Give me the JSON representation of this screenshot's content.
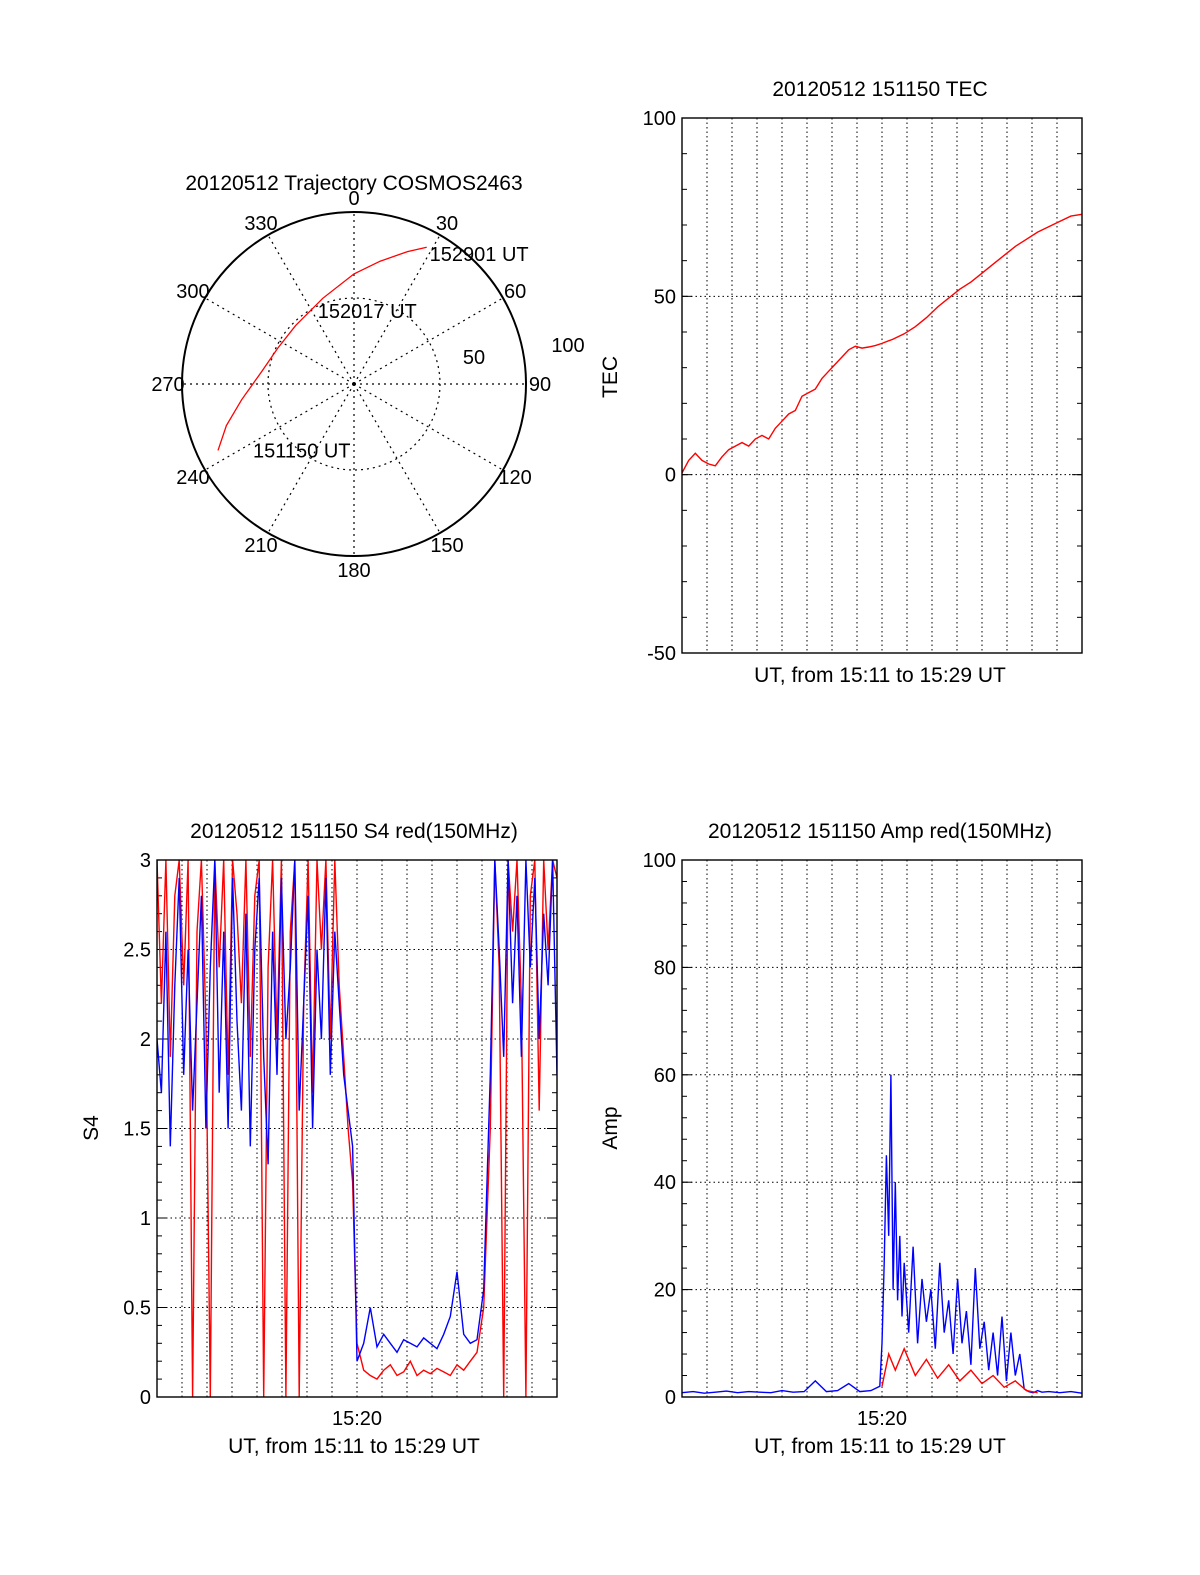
{
  "chart_data": [
    {
      "id": "trajectory",
      "type": "polar",
      "title": "20120512 Trajectory COSMOS2463",
      "azimuth_labels": [
        {
          "deg": 0,
          "text": "0"
        },
        {
          "deg": 30,
          "text": "30"
        },
        {
          "deg": 60,
          "text": "60"
        },
        {
          "deg": 90,
          "text": "90"
        },
        {
          "deg": 120,
          "text": "120"
        },
        {
          "deg": 150,
          "text": "150"
        },
        {
          "deg": 180,
          "text": "180"
        },
        {
          "deg": 210,
          "text": "210"
        },
        {
          "deg": 240,
          "text": "240"
        },
        {
          "deg": 270,
          "text": "270"
        },
        {
          "deg": 300,
          "text": "300"
        },
        {
          "deg": 330,
          "text": "330"
        }
      ],
      "radial_labels": [
        "50",
        "100"
      ],
      "radial_max": 100,
      "rings": [
        50,
        100
      ],
      "series": [
        {
          "color": "#ff0000",
          "points": [
            {
              "az": 244,
              "r": 88
            },
            {
              "az": 252,
              "r": 78
            },
            {
              "az": 262,
              "r": 66
            },
            {
              "az": 278,
              "r": 54
            },
            {
              "az": 295,
              "r": 49
            },
            {
              "az": 315,
              "r": 48
            },
            {
              "az": 340,
              "r": 53
            },
            {
              "az": 0,
              "r": 64
            },
            {
              "az": 12,
              "r": 73
            },
            {
              "az": 22,
              "r": 83
            },
            {
              "az": 28,
              "r": 90
            }
          ]
        }
      ],
      "annotations": [
        {
          "text": "152901 UT",
          "az": 30,
          "r": 88
        },
        {
          "text": "152017 UT",
          "az": 334,
          "r": 48
        },
        {
          "text": "151150 UT",
          "az": 237,
          "r": 70
        }
      ]
    },
    {
      "id": "tec",
      "type": "line",
      "title": "20120512 151150 TEC",
      "ylabel": "TEC",
      "xlabel": "UT, from 15:11 to 15:29 UT",
      "ylim": [
        -50,
        100
      ],
      "yticks": [
        -50,
        0,
        50,
        100
      ],
      "xticks": [],
      "grid": true,
      "series": [
        {
          "color": "#ff0000",
          "x": [
            0.0,
            0.3,
            0.6,
            0.9,
            1.2,
            1.5,
            1.8,
            2.1,
            2.4,
            2.7,
            3.0,
            3.3,
            3.6,
            3.9,
            4.2,
            4.5,
            4.8,
            5.1,
            5.4,
            5.7,
            6.0,
            6.3,
            6.6,
            6.9,
            7.2,
            7.5,
            7.8,
            8.1,
            8.4,
            8.7,
            9.0,
            9.5,
            10.0,
            10.5,
            11.0,
            11.5,
            12.0,
            12.5,
            13.0,
            13.5,
            14.0,
            14.5,
            15.0,
            15.5,
            16.0,
            16.5,
            17.0,
            17.5,
            18.0
          ],
          "values": [
            0.5,
            4,
            6,
            4,
            3,
            2.5,
            5,
            7,
            8,
            9,
            8,
            10,
            11,
            10,
            13,
            15,
            17,
            18,
            22,
            23,
            24,
            27,
            29,
            31,
            33,
            35,
            36,
            35.5,
            35.8,
            36.2,
            36.8,
            38,
            39.5,
            41.5,
            44,
            47,
            49.5,
            52,
            54,
            56.5,
            59,
            61.5,
            64,
            66,
            68,
            69.5,
            71,
            72.5,
            73
          ]
        }
      ]
    },
    {
      "id": "s4",
      "type": "line",
      "title": "20120512 151150 S4 red(150MHz)",
      "ylabel": "S4",
      "xlabel": "UT, from 15:11 to 15:29 UT",
      "ylim": [
        0,
        3
      ],
      "yticks": [
        0,
        0.5,
        1,
        1.5,
        2,
        2.5,
        3
      ],
      "ytick_labels": [
        "0",
        "0.5",
        "1",
        "1.5",
        "2",
        "2.5",
        "3"
      ],
      "xlim": [
        0,
        18
      ],
      "xticks": [
        {
          "x": 9,
          "label": "15:20"
        }
      ],
      "grid": true,
      "series": [
        {
          "color": "#ff0000",
          "x": [
            0.0,
            0.2,
            0.4,
            0.6,
            0.8,
            1.0,
            1.2,
            1.4,
            1.6,
            1.8,
            2.0,
            2.2,
            2.4,
            2.6,
            2.8,
            3.0,
            3.2,
            3.4,
            3.6,
            3.8,
            4.0,
            4.2,
            4.4,
            4.6,
            4.8,
            5.0,
            5.2,
            5.4,
            5.6,
            5.8,
            6.0,
            6.2,
            6.4,
            6.6,
            6.8,
            7.0,
            7.2,
            7.4,
            7.6,
            7.8,
            8.0,
            8.2,
            8.4,
            8.6,
            8.8,
            9.0,
            9.3,
            9.6,
            9.9,
            10.2,
            10.5,
            10.8,
            11.1,
            11.4,
            11.7,
            12.0,
            12.3,
            12.6,
            12.9,
            13.2,
            13.5,
            13.8,
            14.1,
            14.4,
            14.7,
            15.0,
            15.2,
            15.4,
            15.6,
            15.8,
            16.0,
            16.2,
            16.4,
            16.6,
            16.8,
            17.0,
            17.2,
            17.4,
            17.6,
            17.8,
            18.0
          ],
          "values": [
            3.0,
            2.2,
            3.0,
            1.9,
            2.8,
            3.0,
            2.3,
            3.0,
            0.0,
            2.6,
            3.0,
            2.1,
            0.0,
            3.0,
            2.4,
            3.0,
            1.8,
            3.0,
            2.7,
            2.2,
            3.0,
            1.9,
            2.8,
            3.0,
            0.0,
            2.4,
            3.0,
            2.0,
            3.0,
            0.0,
            2.6,
            3.0,
            0.0,
            2.2,
            3.0,
            1.7,
            3.0,
            2.5,
            3.0,
            2.0,
            3.0,
            2.3,
            1.9,
            1.5,
            1.2,
            0.3,
            0.15,
            0.12,
            0.1,
            0.15,
            0.18,
            0.12,
            0.14,
            0.2,
            0.12,
            0.15,
            0.13,
            0.16,
            0.14,
            0.12,
            0.18,
            0.15,
            0.2,
            0.25,
            0.5,
            1.5,
            3.0,
            2.4,
            0.0,
            3.0,
            2.6,
            3.0,
            2.2,
            0.0,
            2.8,
            3.0,
            1.6,
            3.0,
            2.5,
            3.0,
            2.9
          ]
        },
        {
          "color": "#0000ff",
          "x": [
            0.0,
            0.2,
            0.4,
            0.6,
            0.8,
            1.0,
            1.2,
            1.4,
            1.6,
            1.8,
            2.0,
            2.2,
            2.4,
            2.6,
            2.8,
            3.0,
            3.2,
            3.4,
            3.6,
            3.8,
            4.0,
            4.2,
            4.4,
            4.6,
            4.8,
            5.0,
            5.2,
            5.4,
            5.6,
            5.8,
            6.0,
            6.2,
            6.4,
            6.6,
            6.8,
            7.0,
            7.2,
            7.4,
            7.6,
            7.8,
            8.0,
            8.2,
            8.4,
            8.6,
            8.8,
            9.0,
            9.3,
            9.6,
            9.9,
            10.2,
            10.5,
            10.8,
            11.1,
            11.4,
            11.7,
            12.0,
            12.3,
            12.6,
            12.9,
            13.2,
            13.5,
            13.8,
            14.1,
            14.4,
            14.7,
            15.0,
            15.2,
            15.4,
            15.6,
            15.8,
            16.0,
            16.2,
            16.4,
            16.6,
            16.8,
            17.0,
            17.2,
            17.4,
            17.6,
            17.8,
            18.0
          ],
          "values": [
            2.0,
            1.7,
            2.6,
            1.4,
            2.3,
            2.9,
            1.8,
            2.5,
            1.6,
            2.2,
            2.8,
            1.5,
            2.4,
            3.0,
            1.7,
            2.6,
            1.5,
            2.9,
            2.1,
            1.6,
            2.7,
            1.4,
            2.5,
            2.9,
            1.9,
            1.3,
            2.6,
            1.8,
            2.9,
            2.0,
            2.4,
            3.0,
            1.6,
            2.2,
            2.8,
            1.5,
            2.5,
            2.0,
            2.9,
            1.8,
            2.6,
            2.2,
            1.8,
            1.6,
            1.4,
            0.2,
            0.3,
            0.5,
            0.28,
            0.35,
            0.3,
            0.25,
            0.32,
            0.3,
            0.28,
            0.33,
            0.3,
            0.27,
            0.35,
            0.45,
            0.7,
            0.35,
            0.3,
            0.32,
            0.6,
            1.8,
            3.0,
            2.5,
            1.9,
            3.0,
            2.2,
            2.8,
            1.9,
            3.0,
            2.4,
            2.9,
            2.0,
            2.7,
            2.3,
            3.0,
            1.8
          ]
        }
      ]
    },
    {
      "id": "amp",
      "type": "line",
      "title": "20120512 151150 Amp red(150MHz)",
      "ylabel": "Amp",
      "xlabel": "UT, from 15:11 to 15:29 UT",
      "ylim": [
        0,
        100
      ],
      "yticks": [
        0,
        20,
        40,
        60,
        80,
        100
      ],
      "xlim": [
        0,
        18
      ],
      "xticks": [
        {
          "x": 9,
          "label": "15:20"
        }
      ],
      "grid": true,
      "series": [
        {
          "color": "#0000ff",
          "x": [
            0.0,
            0.5,
            1.0,
            1.5,
            2.0,
            2.5,
            3.0,
            3.5,
            4.0,
            4.5,
            5.0,
            5.5,
            6.0,
            6.5,
            7.0,
            7.5,
            8.0,
            8.5,
            8.9,
            9.0,
            9.1,
            9.2,
            9.3,
            9.4,
            9.5,
            9.6,
            9.7,
            9.8,
            9.9,
            10.0,
            10.2,
            10.4,
            10.6,
            10.8,
            11.0,
            11.2,
            11.4,
            11.6,
            11.8,
            12.0,
            12.2,
            12.4,
            12.6,
            12.8,
            13.0,
            13.2,
            13.4,
            13.6,
            13.8,
            14.0,
            14.2,
            14.4,
            14.6,
            14.8,
            15.0,
            15.2,
            15.4,
            15.6,
            15.8,
            16.0,
            16.2,
            16.5,
            17.0,
            17.5,
            18.0
          ],
          "values": [
            0.8,
            1.0,
            0.7,
            0.9,
            1.1,
            0.8,
            1.0,
            0.9,
            0.8,
            1.2,
            0.9,
            1.0,
            3.0,
            1.0,
            1.2,
            2.5,
            1.0,
            1.2,
            2.0,
            10.0,
            25.0,
            45.0,
            30.0,
            60.0,
            20.0,
            40.0,
            18.0,
            30.0,
            15.0,
            25.0,
            12.0,
            28.0,
            10.0,
            22.0,
            14.0,
            20.0,
            9.0,
            25.0,
            12.0,
            18.0,
            8.0,
            22.0,
            10.0,
            16.0,
            6.0,
            24.0,
            9.0,
            14.0,
            5.0,
            12.0,
            4.0,
            15.0,
            3.0,
            12.0,
            4.0,
            8.0,
            1.5,
            1.0,
            0.8,
            1.2,
            0.9,
            1.0,
            0.8,
            1.0,
            0.7
          ]
        },
        {
          "color": "#ff0000",
          "x": [
            9.0,
            9.3,
            9.6,
            10.0,
            10.5,
            11.0,
            11.5,
            12.0,
            12.5,
            13.0,
            13.5,
            14.0,
            14.5,
            15.0,
            15.5,
            16.0
          ],
          "values": [
            2.0,
            8.0,
            5.0,
            9.0,
            4.0,
            7.0,
            3.5,
            6.0,
            3.0,
            5.0,
            2.5,
            4.0,
            1.8,
            3.0,
            1.2,
            0.8
          ]
        }
      ]
    }
  ]
}
